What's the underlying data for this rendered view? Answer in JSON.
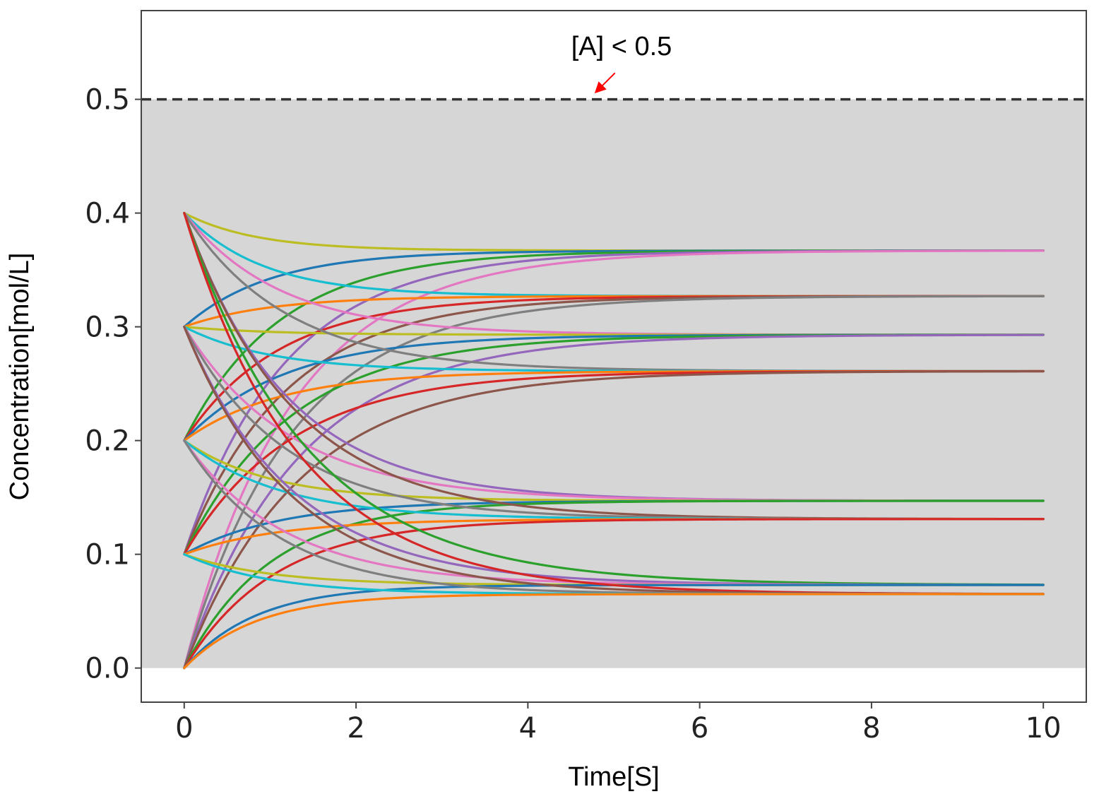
{
  "chart_data": {
    "type": "line",
    "title": "",
    "xlabel": "Time[S]",
    "ylabel": "Concentration[mol/L]",
    "xlim": [
      -0.5,
      10.5
    ],
    "ylim": [
      -0.03,
      0.578
    ],
    "xticks": [
      0,
      2,
      4,
      6,
      8,
      10
    ],
    "xtick_labels": [
      "0",
      "2",
      "4",
      "6",
      "8",
      "10"
    ],
    "yticks": [
      0.0,
      0.1,
      0.2,
      0.3,
      0.4,
      0.5
    ],
    "ytick_labels": [
      "0.0",
      "0.1",
      "0.2",
      "0.3",
      "0.4",
      "0.5"
    ],
    "grid": false,
    "legend": "none",
    "shaded_region": {
      "y_from": 0.0,
      "y_to": 0.5,
      "color": "#d6d6d6"
    },
    "threshold": {
      "y": 0.5,
      "style": "dashed",
      "color": "#333333"
    },
    "annotation": {
      "text": "[A] < 0.5",
      "point_to": [
        4.8,
        0.507
      ],
      "arrow_color": "#ff0000"
    },
    "x_range": [
      0,
      10
    ],
    "palette": [
      "#1f77b4",
      "#ff7f0e",
      "#2ca02c",
      "#d62728",
      "#9467bd",
      "#8c564b",
      "#e377c2",
      "#7f7f7f",
      "#bcbd22",
      "#17becf"
    ],
    "curve_shape": "exponential approach: y(t) = final + (initial - final) * exp(-rate * t)",
    "series": [
      {
        "initial": 0.4,
        "final": 0.367,
        "rate": 1.2,
        "color": "#bcbd22"
      },
      {
        "initial": 0.3,
        "final": 0.367,
        "rate": 1.0,
        "color": "#1f77b4"
      },
      {
        "initial": 0.2,
        "final": 0.367,
        "rate": 0.9,
        "color": "#2ca02c"
      },
      {
        "initial": 0.1,
        "final": 0.367,
        "rate": 0.85,
        "color": "#9467bd"
      },
      {
        "initial": 0.0,
        "final": 0.367,
        "rate": 0.8,
        "color": "#e377c2"
      },
      {
        "initial": 0.4,
        "final": 0.327,
        "rate": 1.1,
        "color": "#17becf"
      },
      {
        "initial": 0.3,
        "final": 0.327,
        "rate": 1.0,
        "color": "#ff7f0e"
      },
      {
        "initial": 0.2,
        "final": 0.327,
        "rate": 0.9,
        "color": "#d62728"
      },
      {
        "initial": 0.1,
        "final": 0.327,
        "rate": 0.85,
        "color": "#8c564b"
      },
      {
        "initial": 0.0,
        "final": 0.327,
        "rate": 0.8,
        "color": "#7f7f7f"
      },
      {
        "initial": 0.4,
        "final": 0.293,
        "rate": 0.9,
        "color": "#e377c2"
      },
      {
        "initial": 0.3,
        "final": 0.293,
        "rate": 1.0,
        "color": "#bcbd22"
      },
      {
        "initial": 0.2,
        "final": 0.293,
        "rate": 0.85,
        "color": "#1f77b4"
      },
      {
        "initial": 0.1,
        "final": 0.293,
        "rate": 0.8,
        "color": "#2ca02c"
      },
      {
        "initial": 0.0,
        "final": 0.293,
        "rate": 0.75,
        "color": "#9467bd"
      },
      {
        "initial": 0.4,
        "final": 0.261,
        "rate": 0.85,
        "color": "#7f7f7f"
      },
      {
        "initial": 0.3,
        "final": 0.261,
        "rate": 1.0,
        "color": "#17becf"
      },
      {
        "initial": 0.2,
        "final": 0.261,
        "rate": 0.9,
        "color": "#ff7f0e"
      },
      {
        "initial": 0.1,
        "final": 0.261,
        "rate": 0.8,
        "color": "#d62728"
      },
      {
        "initial": 0.0,
        "final": 0.261,
        "rate": 0.75,
        "color": "#8c564b"
      },
      {
        "initial": 0.4,
        "final": 0.147,
        "rate": 0.85,
        "color": "#9467bd"
      },
      {
        "initial": 0.3,
        "final": 0.147,
        "rate": 0.8,
        "color": "#e377c2"
      },
      {
        "initial": 0.2,
        "final": 0.147,
        "rate": 1.0,
        "color": "#bcbd22"
      },
      {
        "initial": 0.1,
        "final": 0.147,
        "rate": 0.9,
        "color": "#1f77b4"
      },
      {
        "initial": 0.0,
        "final": 0.147,
        "rate": 1.0,
        "color": "#2ca02c"
      },
      {
        "initial": 0.4,
        "final": 0.131,
        "rate": 0.8,
        "color": "#8c564b"
      },
      {
        "initial": 0.3,
        "final": 0.131,
        "rate": 0.85,
        "color": "#7f7f7f"
      },
      {
        "initial": 0.2,
        "final": 0.131,
        "rate": 0.9,
        "color": "#17becf"
      },
      {
        "initial": 0.1,
        "final": 0.131,
        "rate": 0.9,
        "color": "#ff7f0e"
      },
      {
        "initial": 0.0,
        "final": 0.131,
        "rate": 0.95,
        "color": "#d62728"
      },
      {
        "initial": 0.4,
        "final": 0.073,
        "rate": 0.7,
        "color": "#2ca02c"
      },
      {
        "initial": 0.3,
        "final": 0.073,
        "rate": 0.8,
        "color": "#9467bd"
      },
      {
        "initial": 0.2,
        "final": 0.073,
        "rate": 0.85,
        "color": "#e377c2"
      },
      {
        "initial": 0.1,
        "final": 0.073,
        "rate": 1.0,
        "color": "#bcbd22"
      },
      {
        "initial": 0.0,
        "final": 0.073,
        "rate": 1.2,
        "color": "#1f77b4"
      },
      {
        "initial": 0.4,
        "final": 0.065,
        "rate": 0.75,
        "color": "#d62728"
      },
      {
        "initial": 0.3,
        "final": 0.065,
        "rate": 0.8,
        "color": "#8c564b"
      },
      {
        "initial": 0.2,
        "final": 0.065,
        "rate": 0.9,
        "color": "#7f7f7f"
      },
      {
        "initial": 0.1,
        "final": 0.065,
        "rate": 1.0,
        "color": "#17becf"
      },
      {
        "initial": 0.0,
        "final": 0.065,
        "rate": 1.2,
        "color": "#ff7f0e"
      }
    ]
  }
}
